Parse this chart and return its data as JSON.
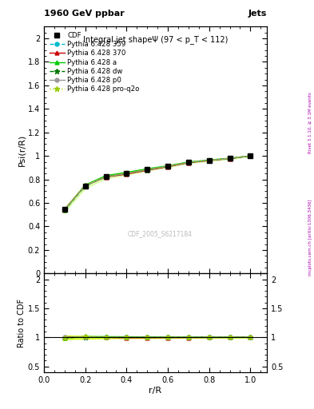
{
  "title_main": "1960 GeV ppbar",
  "title_right": "Jets",
  "plot_title": "Integral jet shapeΨ (97 < p_T < 112)",
  "watermark": "CDF_2005_S6217184",
  "right_label": "Rivet 3.1.10, ≥ 3.1M events",
  "right_label2": "mcplots.cern.ch [arXiv:1306.3436]",
  "xlabel": "r/R",
  "ylabel_top": "Psi(r/R)",
  "ylabel_bot": "Ratio to CDF",
  "x_data": [
    0.1,
    0.2,
    0.3,
    0.4,
    0.5,
    0.6,
    0.7,
    0.8,
    0.9,
    1.0
  ],
  "cdf_y": [
    0.543,
    0.742,
    0.822,
    0.851,
    0.883,
    0.912,
    0.945,
    0.962,
    0.978,
    1.0
  ],
  "cdf_yerr": [
    0.018,
    0.018,
    0.014,
    0.011,
    0.01,
    0.009,
    0.007,
    0.006,
    0.005,
    0.004
  ],
  "pythia_359_y": [
    0.54,
    0.748,
    0.825,
    0.852,
    0.883,
    0.912,
    0.945,
    0.963,
    0.979,
    1.0
  ],
  "pythia_370_y": [
    0.545,
    0.75,
    0.82,
    0.845,
    0.878,
    0.908,
    0.942,
    0.96,
    0.977,
    1.0
  ],
  "pythia_a_y": [
    0.54,
    0.752,
    0.832,
    0.86,
    0.89,
    0.916,
    0.948,
    0.965,
    0.98,
    1.0
  ],
  "pythia_dw_y": [
    0.538,
    0.745,
    0.823,
    0.851,
    0.882,
    0.911,
    0.944,
    0.962,
    0.978,
    1.0
  ],
  "pythia_p0_y": [
    0.543,
    0.748,
    0.822,
    0.851,
    0.883,
    0.912,
    0.945,
    0.962,
    0.978,
    1.0
  ],
  "pythia_q2o_y": [
    0.54,
    0.75,
    0.826,
    0.854,
    0.885,
    0.913,
    0.946,
    0.963,
    0.979,
    1.0
  ],
  "ratio_359": [
    0.994,
    1.008,
    1.003,
    1.001,
    1.0,
    1.0,
    1.0,
    1.001,
    1.001,
    1.0
  ],
  "ratio_370": [
    1.004,
    1.011,
    0.998,
    0.993,
    0.994,
    0.996,
    0.997,
    0.998,
    0.999,
    1.0
  ],
  "ratio_a": [
    0.994,
    1.013,
    1.012,
    1.01,
    1.008,
    1.005,
    1.003,
    1.003,
    1.002,
    1.0
  ],
  "ratio_dw": [
    0.99,
    1.004,
    1.001,
    1.0,
    0.999,
    0.999,
    0.999,
    1.0,
    1.0,
    1.0
  ],
  "ratio_p0": [
    1.0,
    1.008,
    1.0,
    1.0,
    1.0,
    1.0,
    1.0,
    1.0,
    1.0,
    1.0
  ],
  "ratio_q2o": [
    0.994,
    1.011,
    1.005,
    1.003,
    1.002,
    1.001,
    1.001,
    1.001,
    1.001,
    1.0
  ],
  "color_359": "#00BBCC",
  "color_370": "#CC0000",
  "color_a": "#00CC00",
  "color_dw": "#007700",
  "color_p0": "#999999",
  "color_q2o": "#99CC00",
  "xlim": [
    0.0,
    1.08
  ],
  "yticks_top": [
    0.0,
    0.2,
    0.4,
    0.6,
    0.8,
    1.0,
    1.2,
    1.4,
    1.6,
    1.8,
    2.0
  ],
  "yticks_bot": [
    0.5,
    1.0,
    1.5,
    2.0
  ]
}
